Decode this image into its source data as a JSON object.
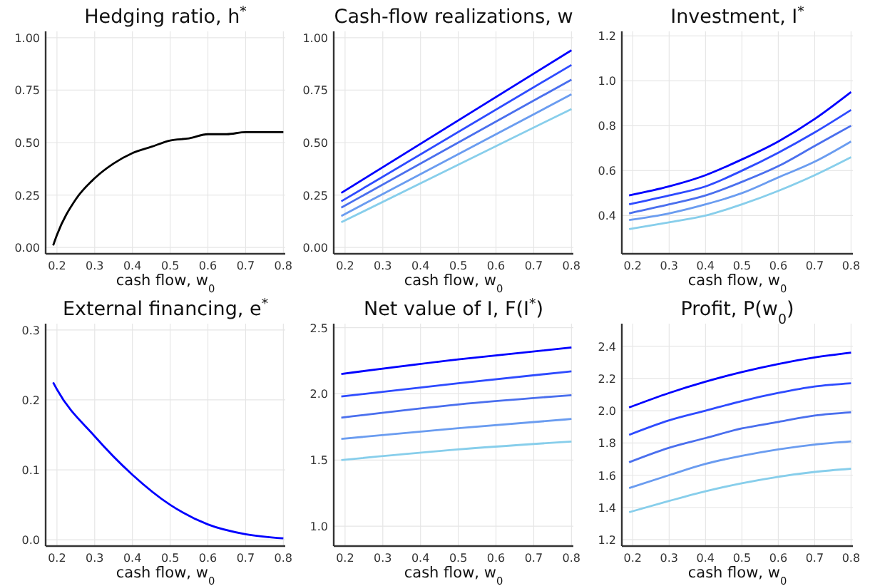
{
  "chart_data": [
    {
      "type": "line",
      "title": "Hedging ratio, h$^{*}$",
      "xlabel": "cash flow, w$_{0}$",
      "x": [
        0.19,
        0.2,
        0.25,
        0.3,
        0.35,
        0.4,
        0.45,
        0.5,
        0.55,
        0.6,
        0.65,
        0.7,
        0.75,
        0.8
      ],
      "xlim": [
        0.17,
        0.805
      ],
      "xticks": [
        0.2,
        0.3,
        0.4,
        0.5,
        0.6,
        0.7,
        0.8
      ],
      "ylim": [
        -0.03,
        1.03
      ],
      "yticks": [
        {
          "value": 0,
          "label": "0.00"
        },
        {
          "value": 0.25,
          "label": "0.25"
        },
        {
          "value": 0.5,
          "label": "0.50"
        },
        {
          "value": 0.75,
          "label": "0.75"
        },
        {
          "value": 1,
          "label": "1.00"
        }
      ],
      "grid": true,
      "series": [
        {
          "color": "#000000",
          "values": [
            0.01,
            0.06,
            0.23,
            0.33,
            0.4,
            0.45,
            0.48,
            0.51,
            0.52,
            0.54,
            0.54,
            0.55,
            0.55,
            0.55
          ]
        }
      ]
    },
    {
      "type": "line",
      "title": "Cash-flow realizations, w",
      "xlabel": "cash flow, w$_{0}$",
      "x": [
        0.19,
        0.8
      ],
      "xlim": [
        0.17,
        0.805
      ],
      "xticks": [
        0.2,
        0.3,
        0.4,
        0.5,
        0.6,
        0.7,
        0.8
      ],
      "ylim": [
        -0.03,
        1.03
      ],
      "yticks": [
        {
          "value": 0,
          "label": "0.00"
        },
        {
          "value": 0.25,
          "label": "0.25"
        },
        {
          "value": 0.5,
          "label": "0.50"
        },
        {
          "value": 0.75,
          "label": "0.75"
        },
        {
          "value": 1,
          "label": "1.00"
        }
      ],
      "grid": true,
      "series": [
        {
          "color": "#0000ff",
          "values": [
            0.26,
            0.94
          ]
        },
        {
          "color": "#2e4bff",
          "values": [
            0.22,
            0.87
          ]
        },
        {
          "color": "#4a6fee",
          "values": [
            0.19,
            0.8
          ]
        },
        {
          "color": "#6a9cf0",
          "values": [
            0.15,
            0.73
          ]
        },
        {
          "color": "#87ceeb",
          "values": [
            0.12,
            0.66
          ]
        }
      ]
    },
    {
      "type": "line",
      "title": "Investment, I$^{*}$",
      "xlabel": "cash flow, w$_{0}$",
      "x": [
        0.19,
        0.3,
        0.4,
        0.5,
        0.6,
        0.7,
        0.8
      ],
      "xlim": [
        0.17,
        0.805
      ],
      "xticks": [
        0.2,
        0.3,
        0.4,
        0.5,
        0.6,
        0.7,
        0.8
      ],
      "ylim": [
        0.23,
        1.22
      ],
      "yticks": [
        0.4,
        0.6,
        0.8,
        {
          "value": 1,
          "label": "1.0"
        },
        1.2
      ],
      "grid": true,
      "series": [
        {
          "color": "#0000ff",
          "values": [
            0.49,
            0.53,
            0.58,
            0.65,
            0.73,
            0.83,
            0.95
          ]
        },
        {
          "color": "#2e4bff",
          "values": [
            0.45,
            0.49,
            0.53,
            0.6,
            0.68,
            0.77,
            0.87
          ]
        },
        {
          "color": "#4a6fee",
          "values": [
            0.41,
            0.45,
            0.49,
            0.55,
            0.62,
            0.71,
            0.8
          ]
        },
        {
          "color": "#6a9cf0",
          "values": [
            0.38,
            0.41,
            0.45,
            0.5,
            0.57,
            0.64,
            0.73
          ]
        },
        {
          "color": "#87ceeb",
          "values": [
            0.34,
            0.37,
            0.4,
            0.45,
            0.51,
            0.58,
            0.66
          ]
        }
      ]
    },
    {
      "type": "line",
      "title": "External financing, e$^{*}$",
      "xlabel": "cash flow, w$_{0}$",
      "x": [
        0.19,
        0.2,
        0.3,
        0.4,
        0.5,
        0.6,
        0.7,
        0.8
      ],
      "xlim": [
        0.17,
        0.805
      ],
      "xticks": [
        0.2,
        0.3,
        0.4,
        0.5,
        0.6,
        0.7,
        0.8
      ],
      "ylim": [
        -0.009,
        0.309
      ],
      "yticks": [
        {
          "value": 0,
          "label": "0.0"
        },
        0.1,
        0.2,
        0.3
      ],
      "grid": true,
      "series": [
        {
          "color": "#0000ff",
          "values": [
            0.225,
            0.215,
            0.148,
            0.093,
            0.05,
            0.022,
            0.008,
            0.002
          ]
        }
      ]
    },
    {
      "type": "line",
      "title": "Net value of I, F(I$^{*}$)",
      "xlabel": "cash flow, w$_{0}$",
      "x": [
        0.19,
        0.5,
        0.8
      ],
      "xlim": [
        0.17,
        0.805
      ],
      "xticks": [
        0.2,
        0.3,
        0.4,
        0.5,
        0.6,
        0.7,
        0.8
      ],
      "ylim": [
        0.85,
        2.53
      ],
      "yticks": [
        {
          "value": 1,
          "label": "1.0"
        },
        1.5,
        {
          "value": 2,
          "label": "2.0"
        },
        2.5
      ],
      "grid": true,
      "series": [
        {
          "color": "#0000ff",
          "values": [
            2.15,
            2.26,
            2.35
          ]
        },
        {
          "color": "#2e4bff",
          "values": [
            1.98,
            2.08,
            2.17
          ]
        },
        {
          "color": "#4a6fee",
          "values": [
            1.82,
            1.92,
            1.99
          ]
        },
        {
          "color": "#6a9cf0",
          "values": [
            1.66,
            1.74,
            1.81
          ]
        },
        {
          "color": "#87ceeb",
          "values": [
            1.5,
            1.58,
            1.64
          ]
        }
      ]
    },
    {
      "type": "line",
      "title": "Profit, P(w$_{0}$)",
      "xlabel": "cash flow, w$_{0}$",
      "x": [
        0.19,
        0.3,
        0.4,
        0.5,
        0.6,
        0.7,
        0.8
      ],
      "xlim": [
        0.17,
        0.805
      ],
      "xticks": [
        0.2,
        0.3,
        0.4,
        0.5,
        0.6,
        0.7,
        0.8
      ],
      "ylim": [
        1.16,
        2.54
      ],
      "yticks": [
        1.2,
        1.4,
        1.6,
        1.8,
        {
          "value": 2,
          "label": "2.0"
        },
        2.2,
        2.4
      ],
      "grid": true,
      "series": [
        {
          "color": "#0000ff",
          "values": [
            2.02,
            2.11,
            2.18,
            2.24,
            2.29,
            2.33,
            2.36
          ]
        },
        {
          "color": "#2e4bff",
          "values": [
            1.85,
            1.94,
            2.0,
            2.06,
            2.11,
            2.15,
            2.17
          ]
        },
        {
          "color": "#4a6fee",
          "values": [
            1.68,
            1.77,
            1.83,
            1.89,
            1.93,
            1.97,
            1.99
          ]
        },
        {
          "color": "#6a9cf0",
          "values": [
            1.52,
            1.6,
            1.67,
            1.72,
            1.76,
            1.79,
            1.81
          ]
        },
        {
          "color": "#87ceeb",
          "values": [
            1.37,
            1.44,
            1.5,
            1.55,
            1.59,
            1.62,
            1.64
          ]
        }
      ]
    }
  ]
}
